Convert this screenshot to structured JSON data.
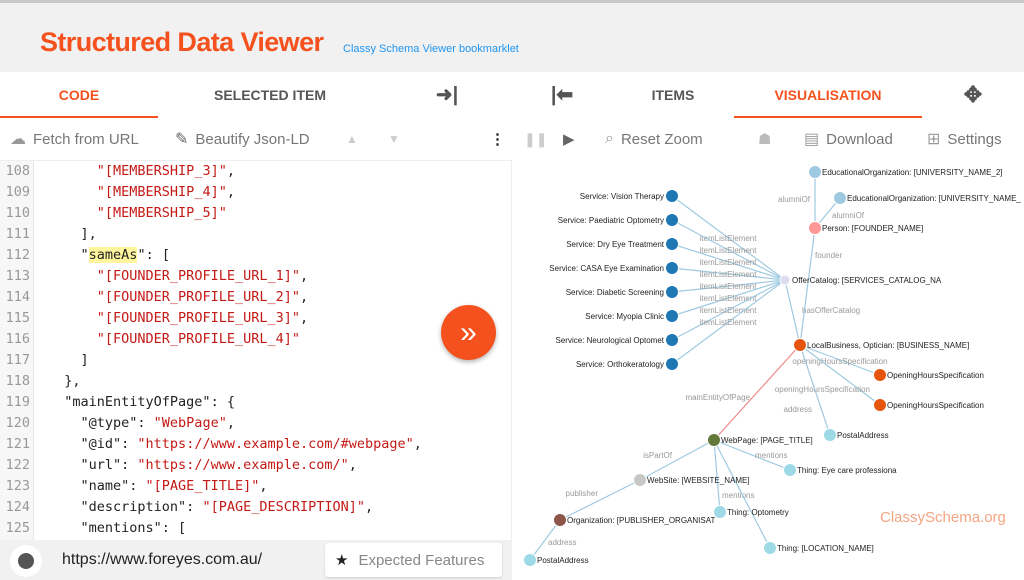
{
  "header": {
    "title": "Structured Data Viewer",
    "subtitle": "Classy Schema Viewer bookmarklet"
  },
  "left_tabs": [
    {
      "label": "CODE",
      "active": true
    },
    {
      "label": "SELECTED ITEM",
      "active": false
    }
  ],
  "right_tabs": [
    {
      "label": "ITEMS",
      "active": false
    },
    {
      "label": "VISUALISATION",
      "active": true
    }
  ],
  "code_toolbar": {
    "fetch": "Fetch from URL",
    "beautify": "Beautify Json-LD"
  },
  "vis_toolbar": {
    "reset_zoom": "Reset Zoom",
    "download": "Download",
    "settings": "Settings"
  },
  "code_lines": [
    {
      "n": "108",
      "indent": "      ",
      "parts": [
        {
          "t": "\"[MEMBERSHIP_3]\"",
          "c": "s"
        },
        {
          "t": ",",
          "c": "k"
        }
      ]
    },
    {
      "n": "109",
      "indent": "      ",
      "parts": [
        {
          "t": "\"[MEMBERSHIP_4]\"",
          "c": "s"
        },
        {
          "t": ",",
          "c": "k"
        }
      ]
    },
    {
      "n": "110",
      "indent": "      ",
      "parts": [
        {
          "t": "\"[MEMBERSHIP_5]\"",
          "c": "s"
        }
      ]
    },
    {
      "n": "111",
      "indent": "    ",
      "parts": [
        {
          "t": "],",
          "c": "k"
        }
      ]
    },
    {
      "n": "112",
      "indent": "    ",
      "parts": [
        {
          "t": "\"",
          "c": "k"
        },
        {
          "t": "sameAs",
          "c": "k hl"
        },
        {
          "t": "\": [",
          "c": "k"
        }
      ]
    },
    {
      "n": "113",
      "indent": "      ",
      "parts": [
        {
          "t": "\"[FOUNDER_PROFILE_URL_1]\"",
          "c": "s"
        },
        {
          "t": ",",
          "c": "k"
        }
      ]
    },
    {
      "n": "114",
      "indent": "      ",
      "parts": [
        {
          "t": "\"[FOUNDER_PROFILE_URL_2]\"",
          "c": "s"
        },
        {
          "t": ",",
          "c": "k"
        }
      ]
    },
    {
      "n": "115",
      "indent": "      ",
      "parts": [
        {
          "t": "\"[FOUNDER_PROFILE_URL_3]\"",
          "c": "s"
        },
        {
          "t": ",",
          "c": "k"
        }
      ]
    },
    {
      "n": "116",
      "indent": "      ",
      "parts": [
        {
          "t": "\"[FOUNDER_PROFILE_URL_4]\"",
          "c": "s"
        }
      ]
    },
    {
      "n": "117",
      "indent": "    ",
      "parts": [
        {
          "t": "]",
          "c": "k"
        }
      ]
    },
    {
      "n": "118",
      "indent": "  ",
      "parts": [
        {
          "t": "},",
          "c": "k"
        }
      ]
    },
    {
      "n": "119",
      "indent": "  ",
      "parts": [
        {
          "t": "\"mainEntityOfPage\": {",
          "c": "k"
        }
      ]
    },
    {
      "n": "120",
      "indent": "    ",
      "parts": [
        {
          "t": "\"@type\": ",
          "c": "k"
        },
        {
          "t": "\"WebPage\"",
          "c": "s"
        },
        {
          "t": ",",
          "c": "k"
        }
      ]
    },
    {
      "n": "121",
      "indent": "    ",
      "parts": [
        {
          "t": "\"@id\": ",
          "c": "k"
        },
        {
          "t": "\"https://www.example.com/#webpage\"",
          "c": "s"
        },
        {
          "t": ",",
          "c": "k"
        }
      ]
    },
    {
      "n": "122",
      "indent": "    ",
      "parts": [
        {
          "t": "\"url\": ",
          "c": "k"
        },
        {
          "t": "\"https://www.example.com/\"",
          "c": "s"
        },
        {
          "t": ",",
          "c": "k"
        }
      ]
    },
    {
      "n": "123",
      "indent": "    ",
      "parts": [
        {
          "t": "\"name\": ",
          "c": "k"
        },
        {
          "t": "\"[PAGE_TITLE]\"",
          "c": "s"
        },
        {
          "t": ",",
          "c": "k"
        }
      ]
    },
    {
      "n": "124",
      "indent": "    ",
      "parts": [
        {
          "t": "\"description\": ",
          "c": "k"
        },
        {
          "t": "\"[PAGE_DESCRIPTION]\"",
          "c": "s"
        },
        {
          "t": ",",
          "c": "k"
        }
      ]
    },
    {
      "n": "125",
      "indent": "    ",
      "parts": [
        {
          "t": "\"mentions\": [",
          "c": "k"
        }
      ]
    }
  ],
  "bottom": {
    "url": "https://www.foreyes.com.au/",
    "features": "Expected Features"
  },
  "graph": {
    "watermark": "ClassySchema.org",
    "colors": {
      "service": "#1f77b4",
      "catalog": "#dcdcf0",
      "business": "#e6550d",
      "person": "#ff9896",
      "edu": "#9ecae1",
      "hours": "#e6550d",
      "address": "#9edae5",
      "webpage": "#637939",
      "website": "#c7c7c7",
      "org": "#8c564b",
      "thing": "#9edae5",
      "edge": "#9ecae1",
      "edge_red": "#e88",
      "watermark": "#f4a582"
    },
    "nodes": [
      {
        "id": "cat",
        "label": "OfferCatalog: [SERVICES_CATALOG_NA",
        "type": "catalog"
      },
      {
        "id": "s1",
        "label": "Service: Vision Therapy",
        "type": "service"
      },
      {
        "id": "s2",
        "label": "Service: Paediatric Optometry",
        "type": "service"
      },
      {
        "id": "s3",
        "label": "Service: Dry Eye Treatment",
        "type": "service"
      },
      {
        "id": "s4",
        "label": "Service: CASA Eye Examination",
        "type": "service"
      },
      {
        "id": "s5",
        "label": "Service: Diabetic Screening",
        "type": "service"
      },
      {
        "id": "s6",
        "label": "Service: Myopia Clinic",
        "type": "service"
      },
      {
        "id": "s7",
        "label": "Service: Neurological Optomet",
        "type": "service"
      },
      {
        "id": "s8",
        "label": "Service: Orthokeratology",
        "type": "service"
      },
      {
        "id": "lb",
        "label": "LocalBusiness, Optician: [BUSINESS_NAME]",
        "type": "business"
      },
      {
        "id": "p",
        "label": "Person: [FOUNDER_NAME]",
        "type": "person"
      },
      {
        "id": "e2",
        "label": "EducationalOrganization: [UNIVERSITY_NAME_2]",
        "type": "edu"
      },
      {
        "id": "e1",
        "label": "EducationalOrganization: [UNIVERSITY_NAME_",
        "type": "edu"
      },
      {
        "id": "h1",
        "label": "OpeningHoursSpecification",
        "type": "hours"
      },
      {
        "id": "h2",
        "label": "OpeningHoursSpecification",
        "type": "hours"
      },
      {
        "id": "a1",
        "label": "PostalAddress",
        "type": "address"
      },
      {
        "id": "wp",
        "label": "WebPage: [PAGE_TITLE]",
        "type": "webpage"
      },
      {
        "id": "ws",
        "label": "WebSite: [WEBSITE_NAME]",
        "type": "website"
      },
      {
        "id": "org",
        "label": "Organization: [PUBLISHER_ORGANISAT",
        "type": "org"
      },
      {
        "id": "t1",
        "label": "Thing: Eye care professiona",
        "type": "thing"
      },
      {
        "id": "t2",
        "label": "Thing: Optometry",
        "type": "thing"
      },
      {
        "id": "t3",
        "label": "Thing: [LOCATION_NAME]",
        "type": "thing"
      },
      {
        "id": "a2",
        "label": "PostalAddress",
        "type": "address"
      }
    ],
    "edges": [
      {
        "from": "cat",
        "to": "s1",
        "label": "itemListElement"
      },
      {
        "from": "cat",
        "to": "s2",
        "label": "itemListElement"
      },
      {
        "from": "cat",
        "to": "s3",
        "label": "itemListElement"
      },
      {
        "from": "cat",
        "to": "s4",
        "label": "itemListElement"
      },
      {
        "from": "cat",
        "to": "s5",
        "label": "itemListElement"
      },
      {
        "from": "cat",
        "to": "s6",
        "label": "itemListElement"
      },
      {
        "from": "cat",
        "to": "s7",
        "label": "itemListElement"
      },
      {
        "from": "cat",
        "to": "s8",
        "label": "itemListElement"
      },
      {
        "from": "lb",
        "to": "cat",
        "label": "hasOfferCatalog"
      },
      {
        "from": "lb",
        "to": "p",
        "label": "founder"
      },
      {
        "from": "p",
        "to": "e2",
        "label": "alumniOf"
      },
      {
        "from": "p",
        "to": "e1",
        "label": "alumniOf"
      },
      {
        "from": "lb",
        "to": "h1",
        "label": "openingHoursSpecification"
      },
      {
        "from": "lb",
        "to": "h2",
        "label": "openingHoursSpecification"
      },
      {
        "from": "lb",
        "to": "a1",
        "label": "address"
      },
      {
        "from": "lb",
        "to": "wp",
        "label": "mainEntityOfPage",
        "red": true
      },
      {
        "from": "wp",
        "to": "ws",
        "label": "isPartOf"
      },
      {
        "from": "wp",
        "to": "t1",
        "label": "mentions"
      },
      {
        "from": "wp",
        "to": "t2",
        "label": "mentions"
      },
      {
        "from": "wp",
        "to": "t3",
        "label": ""
      },
      {
        "from": "ws",
        "to": "org",
        "label": "publisher"
      },
      {
        "from": "org",
        "to": "a2",
        "label": "address"
      }
    ]
  }
}
